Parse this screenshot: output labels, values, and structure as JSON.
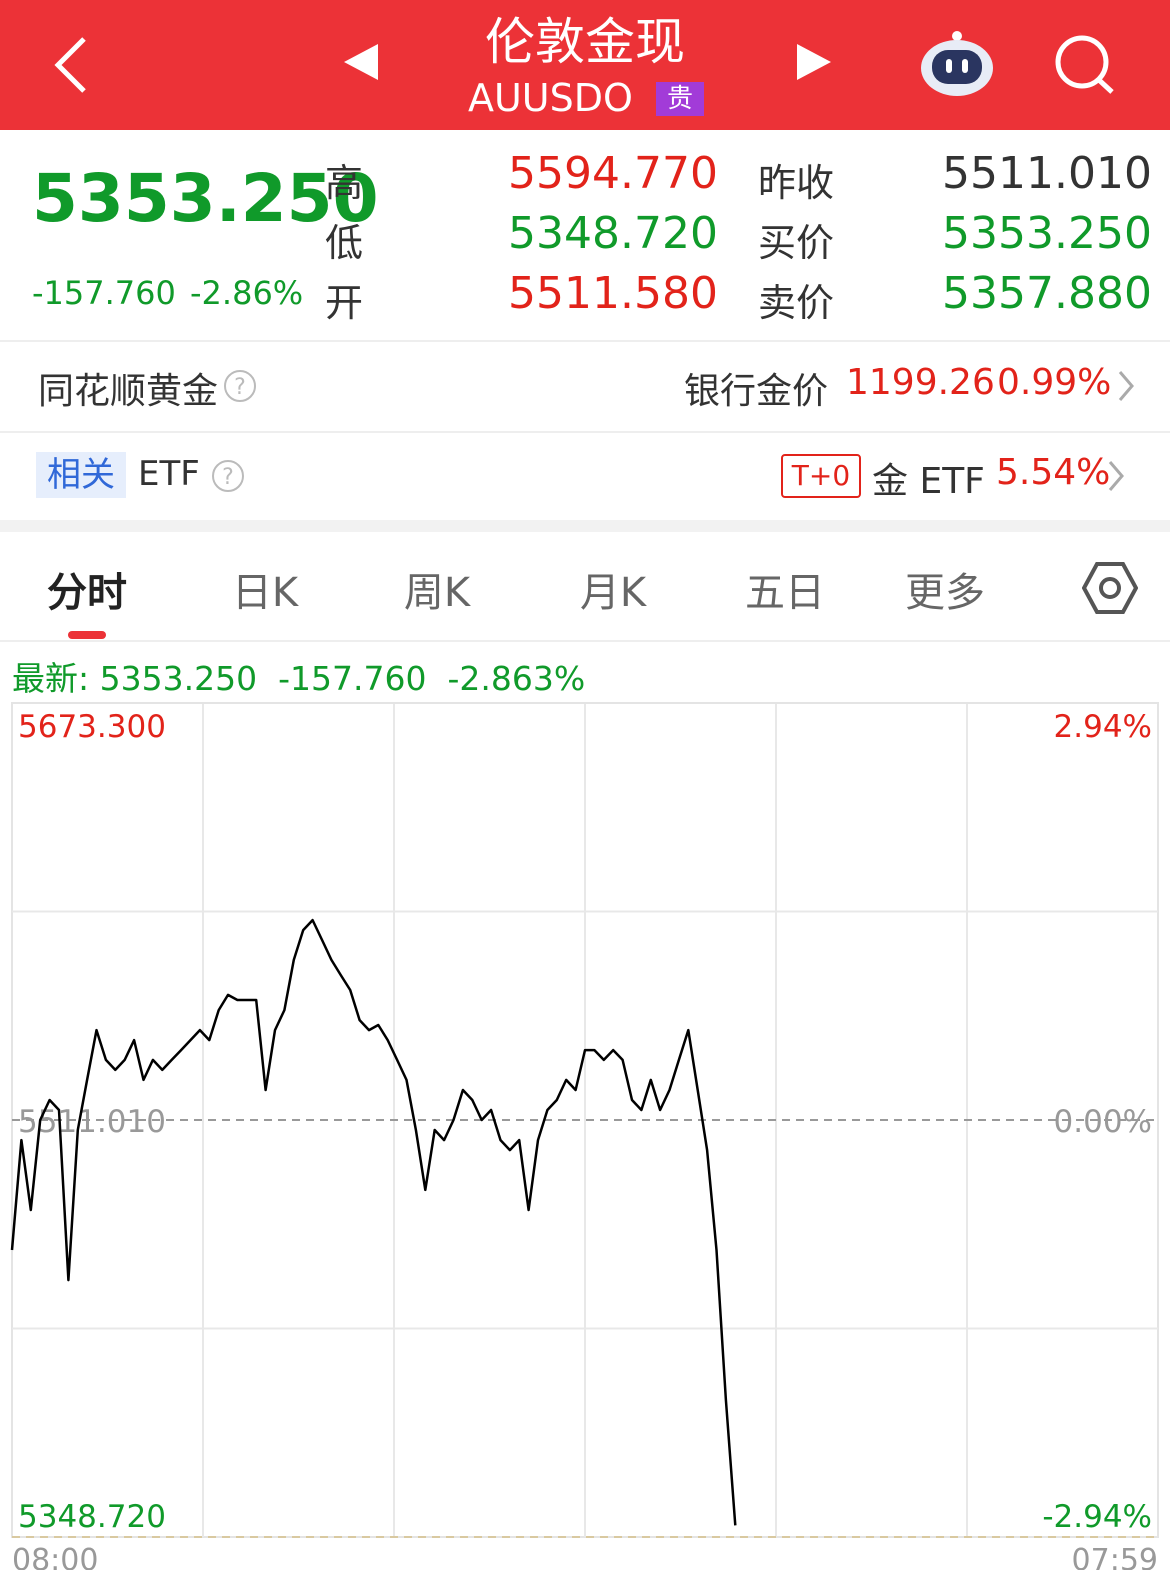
{
  "header": {
    "title": "伦敦金现",
    "code": "AUUSDO",
    "badge": "贵"
  },
  "quote": {
    "price": "5353.250",
    "change": "-157.760",
    "change_pct": "-2.86%",
    "fields": [
      {
        "label": "高",
        "value": "5594.770"
      },
      {
        "label": "低",
        "value": "5348.720"
      },
      {
        "label": "开",
        "value": "5511.580"
      },
      {
        "label": "昨收",
        "value": "5511.010"
      },
      {
        "label": "买价",
        "value": "5353.250"
      },
      {
        "label": "卖价",
        "value": "5357.880"
      }
    ]
  },
  "gold_row": {
    "name": "同花顺黄金",
    "label": "银行金价",
    "price": "1199.26",
    "pct": "0.99%"
  },
  "etf_row": {
    "tag": "相关",
    "name": "ETF",
    "badge": "T+0",
    "label": "金 ETF",
    "pct": "5.54%"
  },
  "tabs": [
    "分时",
    "日K",
    "周K",
    "月K",
    "五日",
    "更多"
  ],
  "quote_line": {
    "label": "最新:",
    "price": "5353.250",
    "change": "-157.760",
    "pct": "-2.863%"
  },
  "chart_data": {
    "type": "line",
    "color": "#000000",
    "ylim": [
      5348.72,
      5673.3
    ],
    "yticks": [
      {
        "value": 5348.72,
        "label": "5348.720"
      },
      {
        "value": 5511.01,
        "label": "5511.010"
      },
      {
        "value": 5673.3,
        "label": "5673.300"
      }
    ],
    "y2lim": [
      -2.94,
      2.94
    ],
    "y2ticks": [
      {
        "value": -2.94,
        "label": "-2.94%"
      },
      {
        "value": 0,
        "label": "0.00%"
      },
      {
        "value": 2.94,
        "label": "2.94%"
      }
    ],
    "categories": [
      "08:00",
      null,
      null,
      null,
      null,
      null,
      null,
      null,
      null,
      null,
      null,
      null,
      null,
      null,
      null,
      null,
      null,
      null,
      null,
      null,
      null,
      null,
      null,
      null,
      null,
      null,
      null,
      null,
      null,
      null,
      null,
      null,
      null,
      null,
      null,
      null,
      null,
      null,
      null,
      null,
      null,
      null,
      null,
      null,
      null,
      null,
      null,
      null,
      null,
      null,
      null,
      null,
      null,
      null,
      null,
      null,
      null,
      null,
      null,
      null,
      null,
      null,
      null,
      null,
      null,
      null,
      null,
      null,
      null,
      null,
      null,
      null,
      null,
      null,
      null,
      null,
      null,
      null,
      null,
      null,
      null,
      null,
      null,
      null,
      null,
      null,
      null,
      null,
      null,
      null,
      null,
      null,
      null,
      null,
      null,
      null,
      null,
      null,
      null,
      null,
      null,
      null,
      null,
      null,
      null,
      null,
      null,
      null,
      null,
      null,
      null,
      null,
      null,
      null,
      null,
      null,
      null,
      null,
      null,
      null,
      null,
      null,
      "07:59"
    ],
    "values": [
      5460.4,
      5503.2,
      5476.0,
      5511.0,
      5518.8,
      5514.9,
      5448.7,
      5507.1,
      5526.6,
      5546.0,
      5534.4,
      5530.5,
      5534.4,
      5542.1,
      5526.6,
      5534.4,
      5530.5,
      5534.4,
      5538.2,
      5542.1,
      5546.0,
      5542.1,
      5553.8,
      5559.7,
      5557.7,
      5557.7,
      5557.7,
      5522.7,
      5546.0,
      5553.8,
      5573.3,
      5584.9,
      5588.8,
      5581.1,
      5573.3,
      5567.4,
      5561.6,
      5549.9,
      5546.0,
      5548.0,
      5542.1,
      5534.4,
      5526.6,
      5507.1,
      5483.8,
      5507.1,
      5503.2,
      5511.0,
      5522.7,
      5518.8,
      5511.0,
      5514.9,
      5503.2,
      5499.3,
      5503.2,
      5476.0,
      5503.2,
      5514.9,
      5518.8,
      5526.6,
      5522.7,
      5538.2,
      5538.2,
      5534.4,
      5538.2,
      5534.4,
      5518.8,
      5514.9,
      5526.6,
      5514.9,
      5522.7,
      5534.4,
      5546.0,
      5522.7,
      5499.3,
      5460.4,
      5402.0,
      5353.25,
      null,
      null,
      null,
      null,
      null,
      null,
      null,
      null,
      null,
      null,
      null,
      null,
      null,
      null,
      null,
      null,
      null,
      null,
      null,
      null,
      null,
      null,
      null,
      null,
      null,
      null,
      null,
      null,
      null,
      null,
      null,
      null,
      null,
      null,
      null,
      null,
      null,
      null,
      null,
      null,
      null,
      null,
      null,
      null,
      null
    ]
  }
}
